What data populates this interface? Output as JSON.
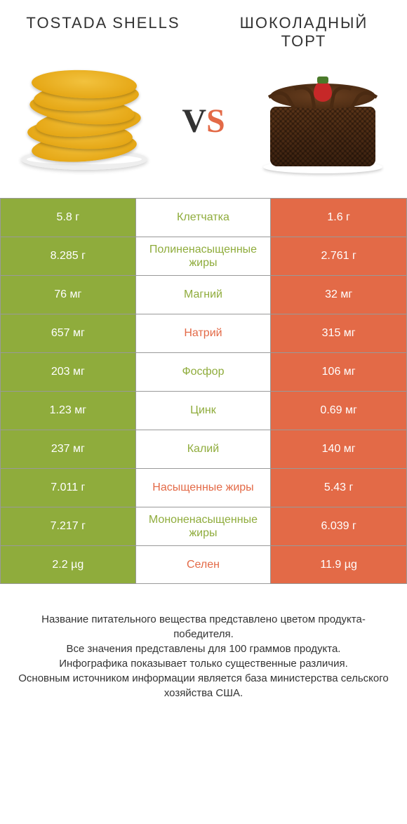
{
  "colors": {
    "left": "#8fac3c",
    "right": "#e36a47",
    "vs_accent": "#e36a47",
    "text_dark": "#333333"
  },
  "titles": {
    "left": "TOSTADA SHELLS",
    "right": "ШОКОЛАДНЫЙ ТОРТ"
  },
  "vs": {
    "v": "V",
    "s": "S"
  },
  "table": {
    "rows": [
      {
        "left": "5.8 г",
        "label": "Клетчатка",
        "right": "1.6 г",
        "winner": "left"
      },
      {
        "left": "8.285 г",
        "label": "Полиненасыщенные жиры",
        "right": "2.761 г",
        "winner": "left"
      },
      {
        "left": "76 мг",
        "label": "Магний",
        "right": "32 мг",
        "winner": "left"
      },
      {
        "left": "657 мг",
        "label": "Натрий",
        "right": "315 мг",
        "winner": "right"
      },
      {
        "left": "203 мг",
        "label": "Фосфор",
        "right": "106 мг",
        "winner": "left"
      },
      {
        "left": "1.23 мг",
        "label": "Цинк",
        "right": "0.69 мг",
        "winner": "left"
      },
      {
        "left": "237 мг",
        "label": "Калий",
        "right": "140 мг",
        "winner": "left"
      },
      {
        "left": "7.011 г",
        "label": "Насыщенные жиры",
        "right": "5.43 г",
        "winner": "right"
      },
      {
        "left": "7.217 г",
        "label": "Мононенасыщенные жиры",
        "right": "6.039 г",
        "winner": "left"
      },
      {
        "left": "2.2 µg",
        "label": "Селен",
        "right": "11.9 µg",
        "winner": "right"
      }
    ]
  },
  "footer": {
    "l1": "Название питательного вещества представлено цветом продукта-победителя.",
    "l2": "Все значения представлены для 100 граммов продукта.",
    "l3": "Инфографика показывает только существенные различия.",
    "l4": "Основным источником информации является база министерства сельского хозяйства США."
  }
}
